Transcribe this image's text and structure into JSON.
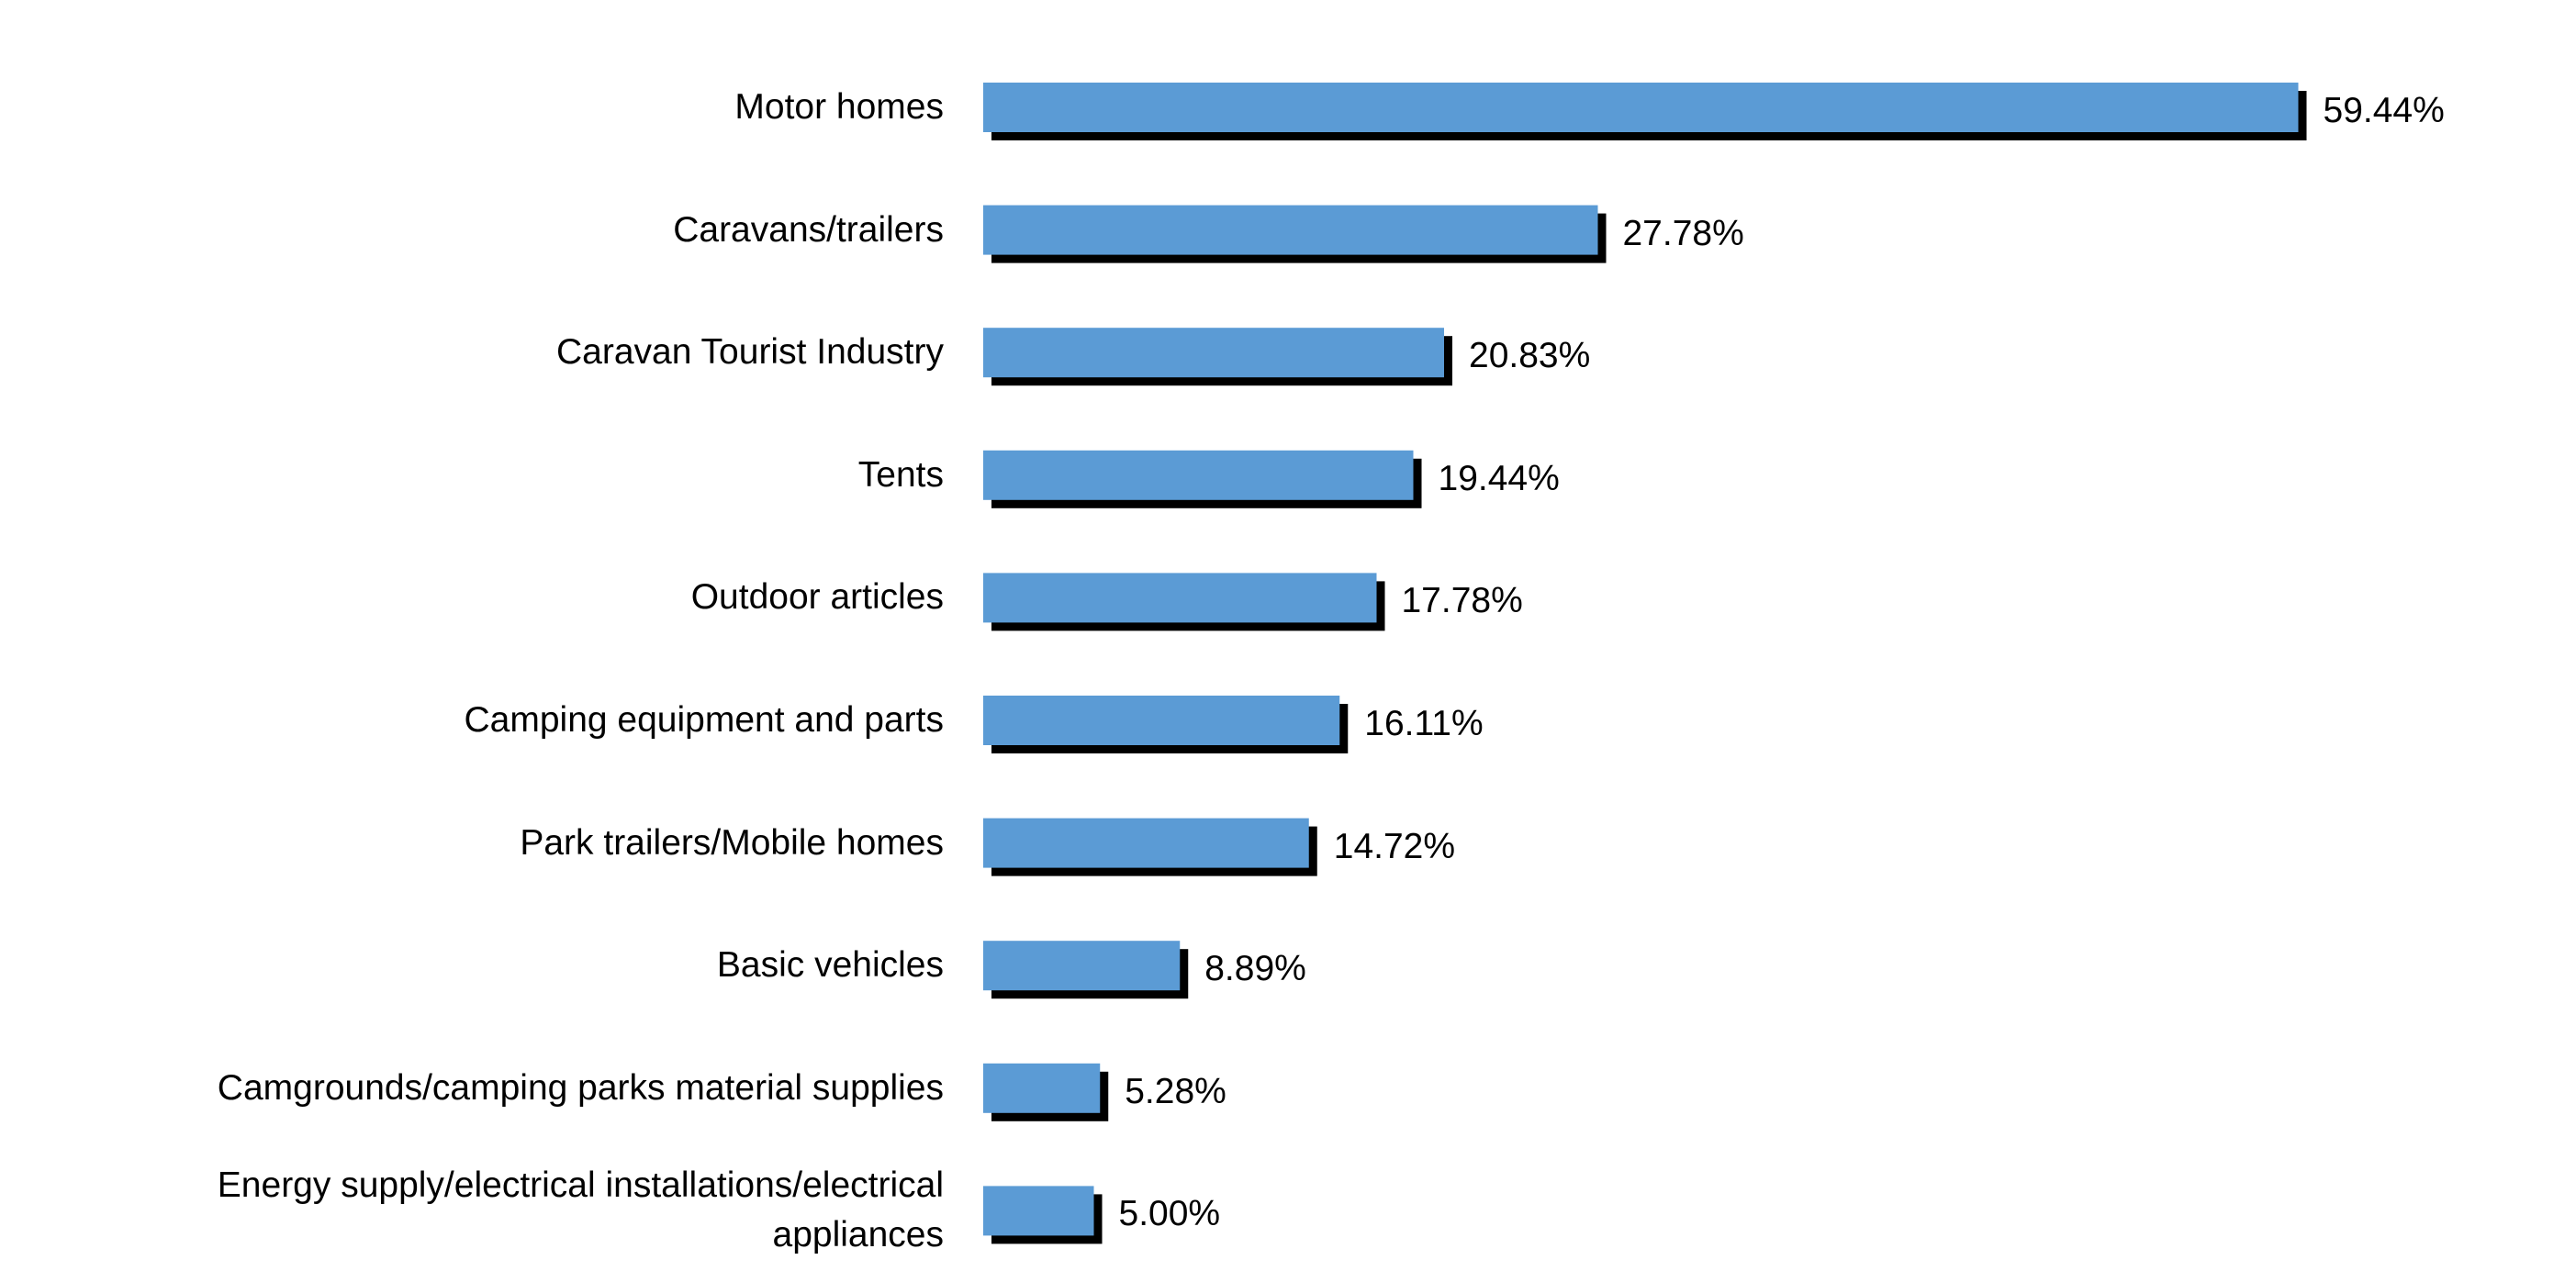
{
  "chart_data": {
    "type": "bar",
    "orientation": "horizontal",
    "categories": [
      "Motor homes",
      "Caravans/trailers",
      "Caravan Tourist Industry",
      "Tents",
      "Outdoor articles",
      "Camping equipment and parts",
      "Park trailers/Mobile homes",
      "Basic vehicles",
      "Camgrounds/camping parks material supplies",
      "Energy supply/electrical installations/electrical appliances"
    ],
    "values": [
      59.44,
      27.78,
      20.83,
      19.44,
      17.78,
      16.11,
      14.72,
      8.89,
      5.28,
      5.0
    ],
    "value_labels": [
      "59.44%",
      "27.78%",
      "20.83%",
      "19.44%",
      "17.78%",
      "16.11%",
      "14.72%",
      "8.89%",
      "5.28%",
      "5.00%"
    ],
    "color": "#5b9bd5",
    "shadow_color": "#000000"
  }
}
